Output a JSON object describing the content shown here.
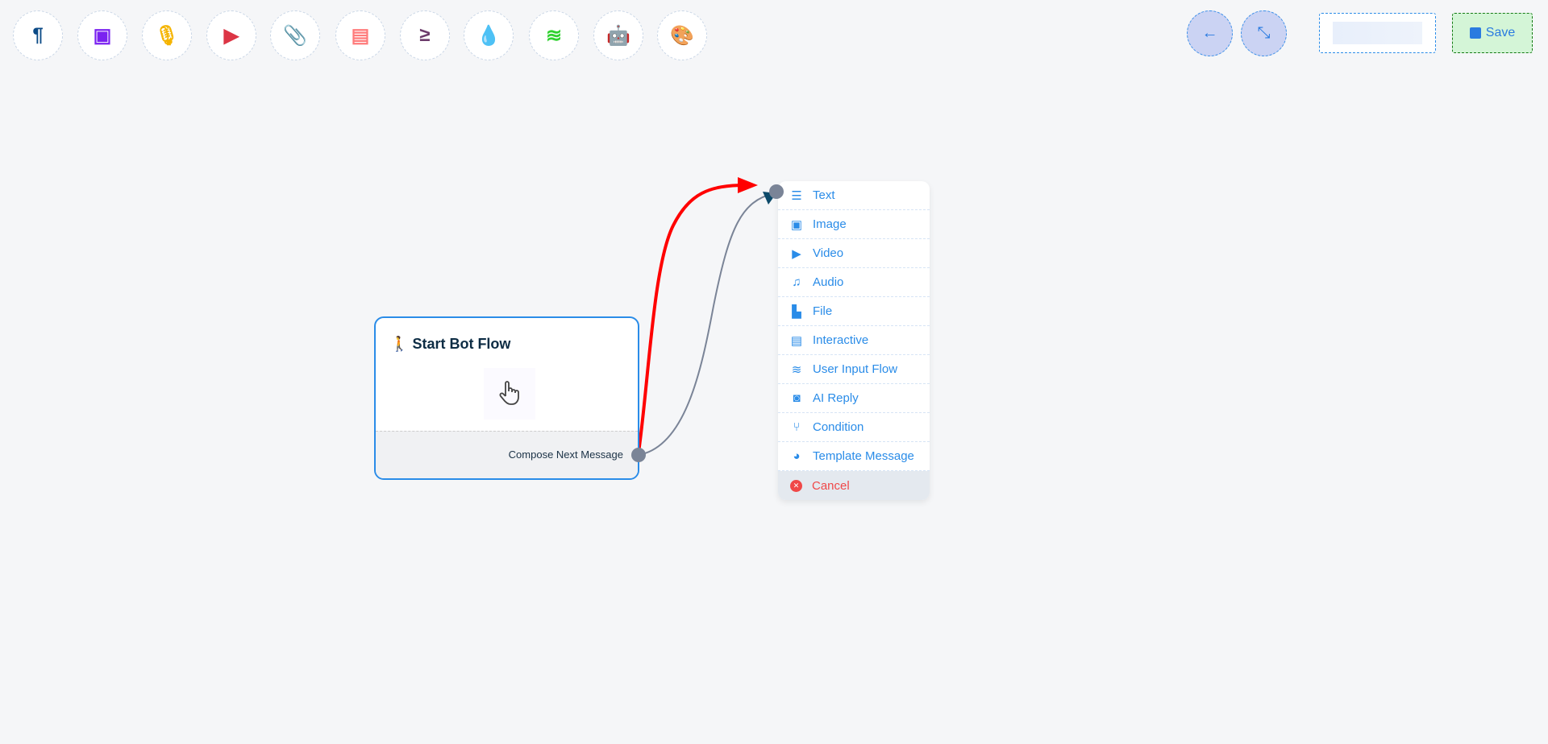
{
  "toolbar": {
    "tools": [
      {
        "name": "paragraph-icon",
        "glyph": "¶",
        "color": "#0b4a86"
      },
      {
        "name": "image-icon",
        "glyph": "▣",
        "color": "#7a22f0"
      },
      {
        "name": "microphone-icon",
        "glyph": "🎙",
        "color": "#f5b400"
      },
      {
        "name": "youtube-icon",
        "glyph": "▶",
        "color": "#dc3545"
      },
      {
        "name": "paperclip-icon",
        "glyph": "📎",
        "color": "#1d9a4a"
      },
      {
        "name": "newspaper-icon",
        "glyph": "▤",
        "color": "#ff7b7b"
      },
      {
        "name": "greater-equal-icon",
        "glyph": "≥",
        "color": "#6c3b6b"
      },
      {
        "name": "droplet-icon",
        "glyph": "💧",
        "color": "#c8123a"
      },
      {
        "name": "stack-icon",
        "glyph": "≋",
        "color": "#2fd12f"
      },
      {
        "name": "robot-icon",
        "glyph": "🤖",
        "color": "#1010f0"
      },
      {
        "name": "palette-icon",
        "glyph": "🎨",
        "color": "#18c718"
      }
    ]
  },
  "header": {
    "back_icon": "←",
    "compress_icon": "⤡",
    "name_input_value": "",
    "save_label": "Save"
  },
  "node": {
    "title": "Start Bot Flow",
    "footer_label": "Compose Next Message"
  },
  "menu": {
    "items": [
      {
        "label": "Text",
        "icon": "☰"
      },
      {
        "label": "Image",
        "icon": "▣"
      },
      {
        "label": "Video",
        "icon": "▶"
      },
      {
        "label": "Audio",
        "icon": "♫"
      },
      {
        "label": "File",
        "icon": "▙"
      },
      {
        "label": "Interactive",
        "icon": "▤"
      },
      {
        "label": "User Input Flow",
        "icon": "≋"
      },
      {
        "label": "AI Reply",
        "icon": "◙"
      },
      {
        "label": "Condition",
        "icon": "⑂"
      },
      {
        "label": "Template Message",
        "icon": "◕"
      }
    ],
    "cancel": {
      "label": "Cancel",
      "icon": "✕"
    }
  },
  "colors": {
    "accent": "#2a8ce8",
    "edge_active": "#ff0000",
    "edge": "#7a8497",
    "cancel": "#f04848"
  }
}
